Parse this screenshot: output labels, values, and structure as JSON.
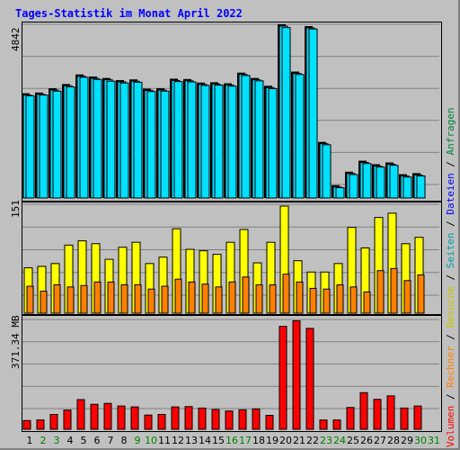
{
  "title": "Tages-Statistik im Monat April 2022",
  "axis": {
    "top_max": "4842",
    "mid_max": "151",
    "bottom_max": "371.34 MB"
  },
  "legend": {
    "anfragen": "Anfragen",
    "dateien": "Dateien",
    "seiten": "Seiten",
    "besuche": "Besuche",
    "rechner": "Rechner",
    "volumen": "Volumen",
    "sep": " / "
  },
  "colors": {
    "anfragen": "#00e0ff",
    "dateien": "#0080ff",
    "seiten": "#00c0c0",
    "besuche": "#ffff00",
    "rechner": "#ff8000",
    "volumen": "#ff0000",
    "weekday": "#000000",
    "weekend": "#008000",
    "title": "#0000ff",
    "legend_anfragen": "#008040",
    "legend_dateien": "#0000ff",
    "legend_seiten": "#00a0a0",
    "legend_besuche": "#c8c800",
    "legend_rechner": "#ff8000",
    "legend_volumen": "#ff0000"
  },
  "chart_data": [
    {
      "type": "bar",
      "categories": [
        "1",
        "2",
        "3",
        "4",
        "5",
        "6",
        "7",
        "8",
        "9",
        "10",
        "11",
        "12",
        "13",
        "14",
        "15",
        "16",
        "17",
        "18",
        "19",
        "20",
        "21",
        "22",
        "23",
        "24",
        "25",
        "26",
        "27",
        "28",
        "29",
        "30",
        "31"
      ],
      "series": [
        {
          "name": "Anfragen",
          "values": [
            2900,
            2920,
            3040,
            3160,
            3430,
            3370,
            3330,
            3270,
            3290,
            3030,
            3040,
            3310,
            3300,
            3200,
            3210,
            3180,
            3480,
            3330,
            3110,
            4842,
            3510,
            4790,
            1530,
            310,
            690,
            1000,
            900,
            950,
            620,
            650,
            0
          ]
        },
        {
          "name": "Dateien",
          "values": [
            2880,
            2900,
            3010,
            3130,
            3400,
            3340,
            3290,
            3240,
            3260,
            3000,
            3010,
            3280,
            3270,
            3170,
            3180,
            3150,
            3450,
            3300,
            3080,
            4800,
            3480,
            4760,
            1500,
            290,
            660,
            970,
            870,
            920,
            590,
            620,
            0
          ]
        }
      ],
      "ylim": [
        0,
        4842
      ]
    },
    {
      "type": "bar",
      "categories": [
        "1",
        "2",
        "3",
        "4",
        "5",
        "6",
        "7",
        "8",
        "9",
        "10",
        "11",
        "12",
        "13",
        "14",
        "15",
        "16",
        "17",
        "18",
        "19",
        "20",
        "21",
        "22",
        "23",
        "24",
        "25",
        "26",
        "27",
        "28",
        "29",
        "30",
        "31"
      ],
      "series": [
        {
          "name": "Seiten",
          "values": [
            0,
            0,
            0,
            0,
            0,
            0,
            0,
            0,
            0,
            0,
            0,
            0,
            0,
            0,
            0,
            0,
            0,
            0,
            0,
            0,
            0,
            0,
            0,
            0,
            0,
            0,
            0,
            0,
            0,
            0,
            0
          ]
        },
        {
          "name": "Besuche",
          "values": [
            64,
            66,
            70,
            96,
            102,
            98,
            76,
            93,
            100,
            70,
            79,
            119,
            90,
            88,
            83,
            100,
            118,
            71,
            100,
            151,
            74,
            58,
            58,
            70,
            121,
            92,
            135,
            141,
            98,
            107,
            0
          ]
        },
        {
          "name": "Rechner",
          "values": [
            38,
            31,
            40,
            37,
            39,
            44,
            44,
            40,
            40,
            34,
            38,
            48,
            44,
            41,
            37,
            44,
            51,
            40,
            40,
            55,
            44,
            35,
            34,
            40,
            37,
            30,
            60,
            63,
            46,
            54,
            0
          ]
        }
      ],
      "ylim": [
        0,
        151
      ]
    },
    {
      "type": "bar",
      "categories": [
        "1",
        "2",
        "3",
        "4",
        "5",
        "6",
        "7",
        "8",
        "9",
        "10",
        "11",
        "12",
        "13",
        "14",
        "15",
        "16",
        "17",
        "18",
        "19",
        "20",
        "21",
        "22",
        "23",
        "24",
        "25",
        "26",
        "27",
        "28",
        "29",
        "30",
        "31"
      ],
      "series": [
        {
          "name": "Volumen",
          "values": [
            30,
            32,
            51,
            66,
            102,
            86,
            89,
            80,
            77,
            49,
            51,
            77,
            78,
            73,
            68,
            63,
            67,
            70,
            48,
            354,
            373,
            347,
            32,
            32,
            75,
            126,
            103,
            115,
            73,
            80,
            0
          ]
        }
      ],
      "ylim": [
        0,
        371.34
      ]
    }
  ]
}
